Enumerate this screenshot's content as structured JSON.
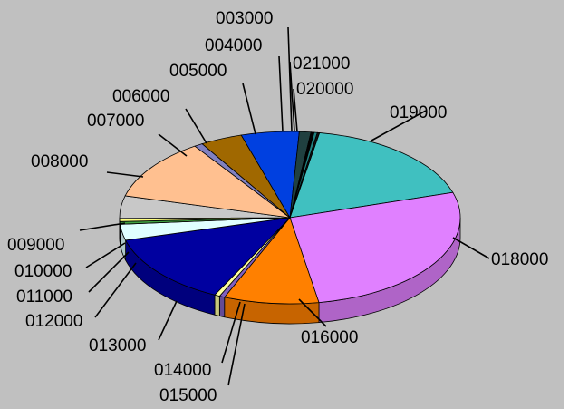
{
  "chart_data": {
    "type": "pie",
    "style": "3d-exploded-none",
    "title": "",
    "background": "#c0c0c0",
    "slices": [
      {
        "label": "019000",
        "value": 17.5,
        "color": "#40c0c0"
      },
      {
        "label": "018000",
        "value": 27.0,
        "color": "#e080ff"
      },
      {
        "label": "016000",
        "value": 9.0,
        "color": "#ff8000"
      },
      {
        "label": "015000",
        "value": 0.5,
        "color": "#8060c0"
      },
      {
        "label": "014000",
        "value": 0.5,
        "color": "#ffffa0"
      },
      {
        "label": "013000",
        "value": 13.5,
        "color": "#0000a0"
      },
      {
        "label": "012000",
        "value": 3.0,
        "color": "#e0ffff"
      },
      {
        "label": "011000",
        "value": 0.5,
        "color": "#40a040"
      },
      {
        "label": "010000",
        "value": 0.6,
        "color": "#ffff80"
      },
      {
        "label": "009000",
        "value": 4.2,
        "color": "#c8c8c8"
      },
      {
        "label": "008000",
        "value": 11.5,
        "color": "#ffc090"
      },
      {
        "label": "007000",
        "value": 0.8,
        "color": "#8080c0"
      },
      {
        "label": "006000",
        "value": 4.0,
        "color": "#a06800"
      },
      {
        "label": "005000",
        "value": 5.5,
        "color": "#0040e0"
      },
      {
        "label": "004000",
        "value": 1.1,
        "color": "#204040"
      },
      {
        "label": "003000",
        "value": 0.3,
        "color": "#000000"
      },
      {
        "label": "021000",
        "value": 0.3,
        "color": "#208080"
      },
      {
        "label": "020000",
        "value": 0.2,
        "color": "#101010"
      }
    ]
  }
}
